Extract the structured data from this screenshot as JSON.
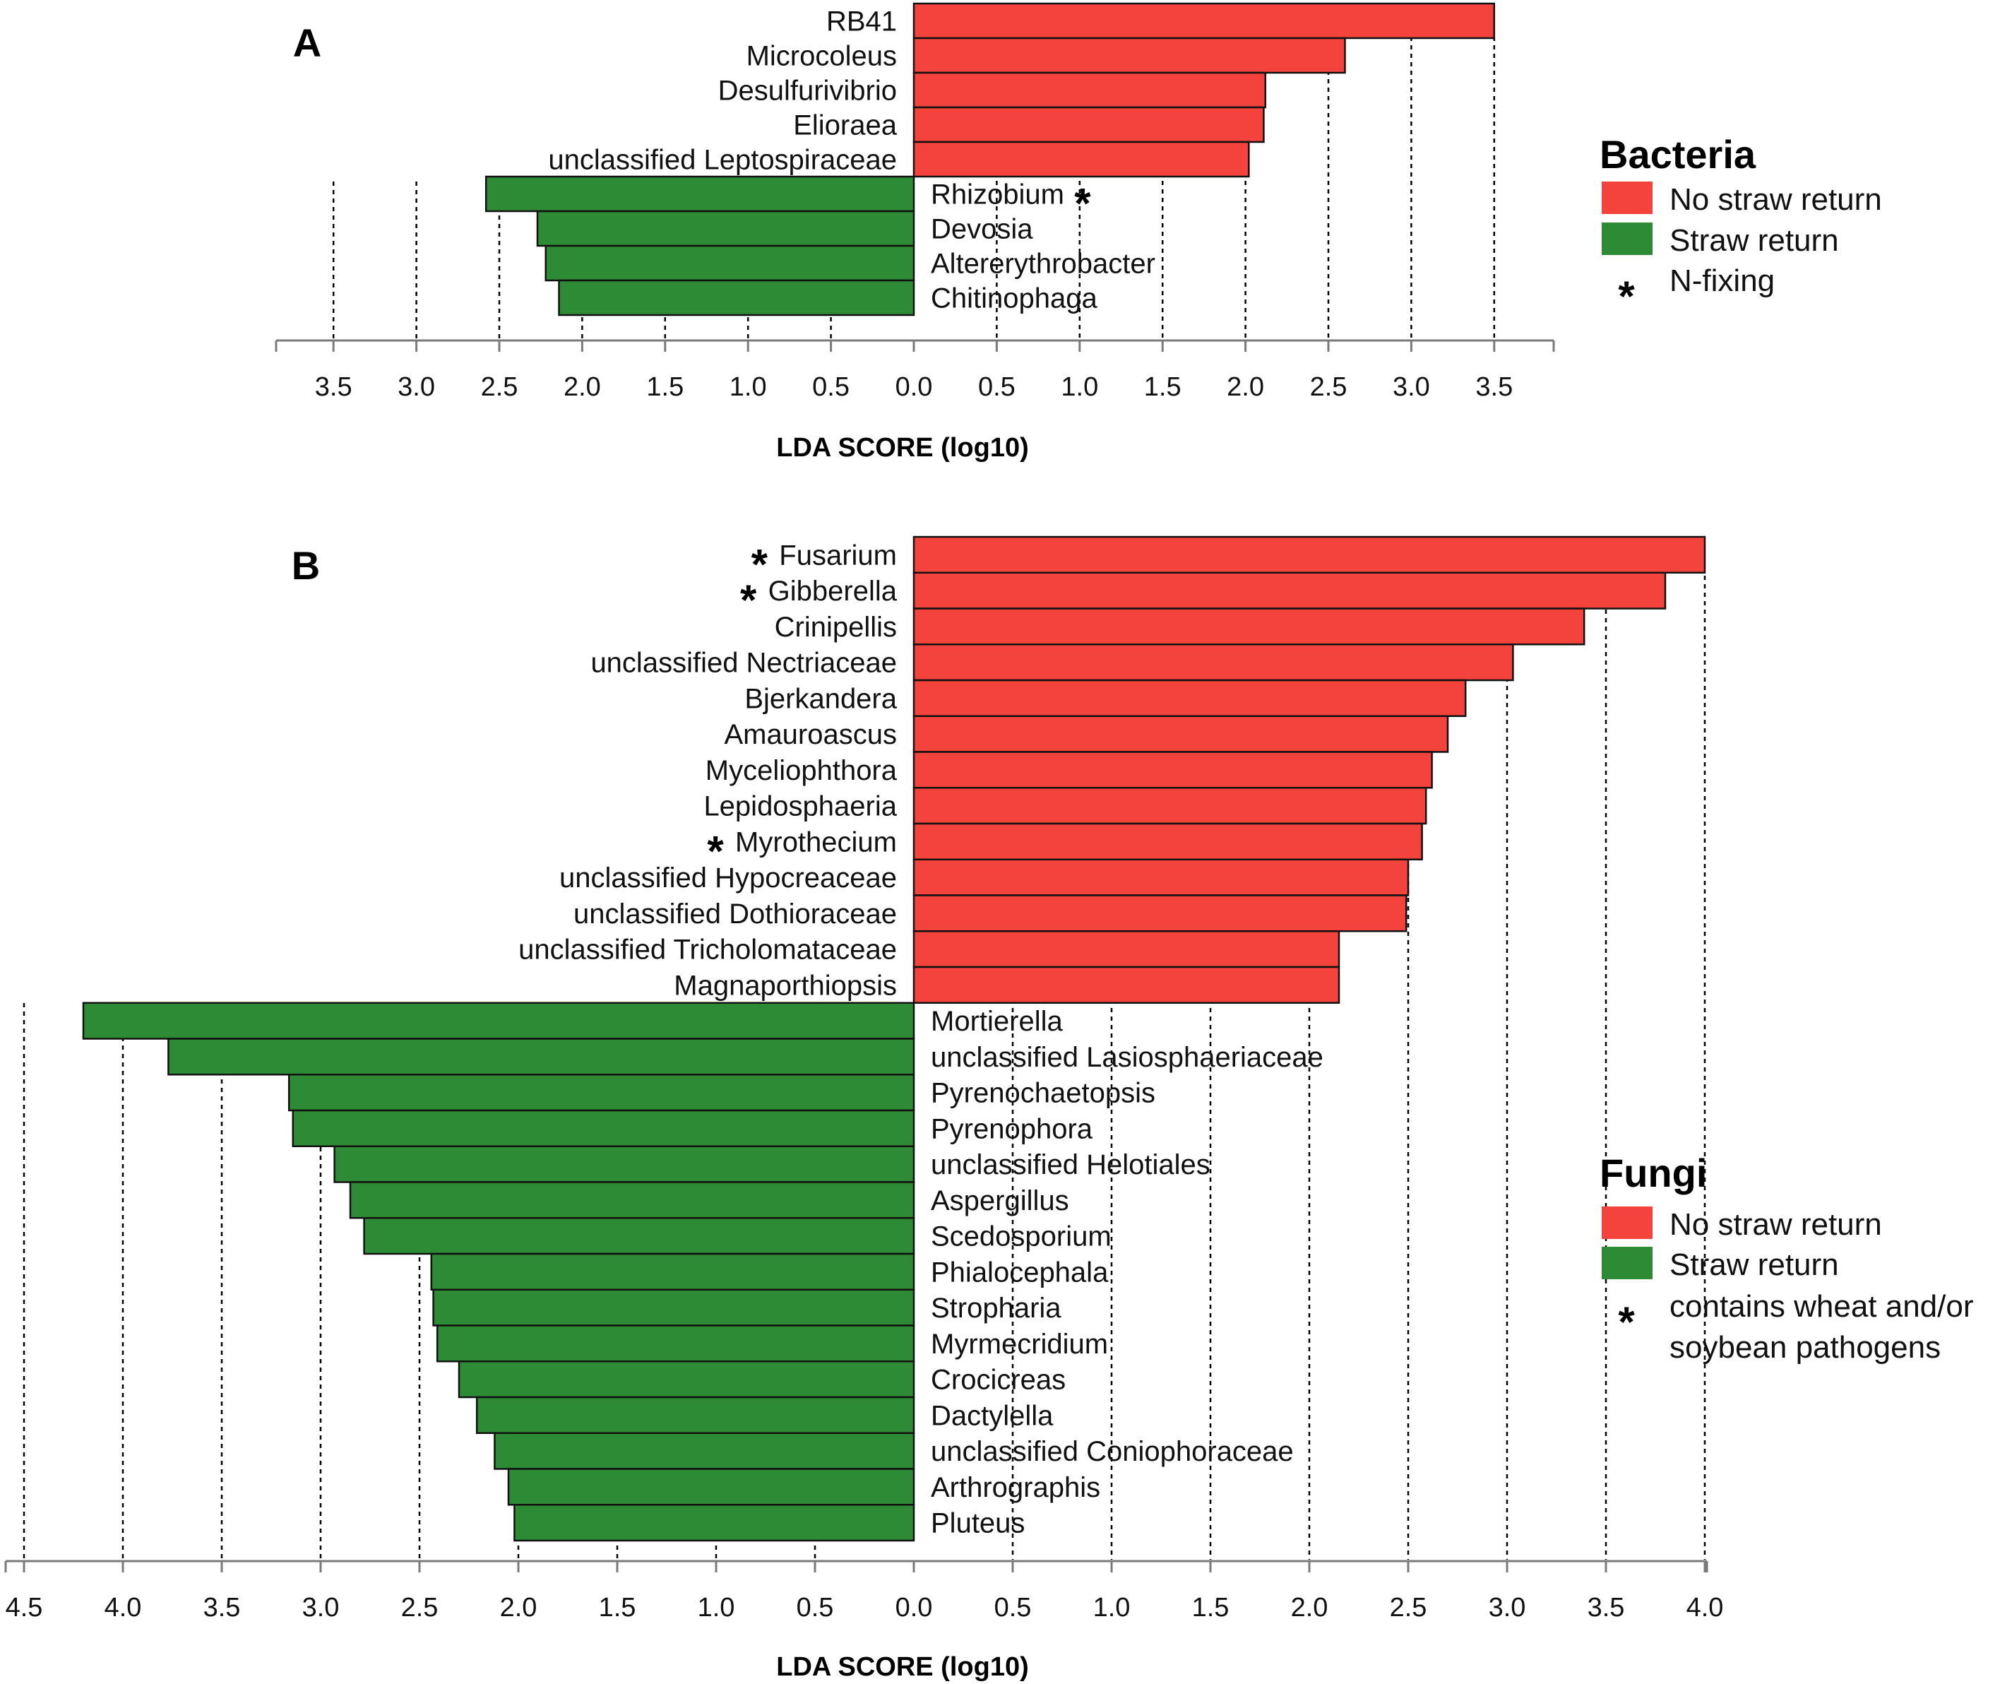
{
  "chart_data": [
    {
      "panel": "A",
      "type": "bar",
      "orientation": "horizontal",
      "xlabel": "LDA SCORE (log10)",
      "xticks_left": [
        "3.5",
        "3.0",
        "2.5",
        "2.0",
        "1.5",
        "1.0",
        "0.5"
      ],
      "xticks_right": [
        "0.0",
        "0.5",
        "1.0",
        "1.5",
        "2.0",
        "2.5",
        "3.0",
        "3.5"
      ],
      "series": [
        {
          "name": "No straw return",
          "color": "#f4433c",
          "categories": [
            "RB41",
            "Microcoleus",
            "Desulfurivibrio",
            "Elioraea",
            "unclassified Leptospiraceae"
          ],
          "values": [
            3.5,
            2.6,
            2.12,
            2.11,
            2.02
          ],
          "starred": [
            false,
            false,
            false,
            false,
            false
          ]
        },
        {
          "name": "Straw return",
          "color": "#2e8b35",
          "categories": [
            "Rhizobium",
            "Devosia",
            "Altererythrobacter",
            "Chitinophaga"
          ],
          "values": [
            2.58,
            2.27,
            2.22,
            2.14
          ],
          "starred": [
            true,
            false,
            false,
            false
          ]
        }
      ],
      "legend": {
        "title": "Bacteria",
        "items": [
          "No straw return",
          "Straw return"
        ],
        "star_label": "N-fixing",
        "star_symbol": "*"
      }
    },
    {
      "panel": "B",
      "type": "bar",
      "orientation": "horizontal",
      "xlabel": "LDA SCORE (log10)",
      "xticks_left": [
        "4.5",
        "4.0",
        "3.5",
        "3.0",
        "2.5",
        "2.0",
        "1.5",
        "1.0",
        "0.5"
      ],
      "xticks_right": [
        "0.0",
        "0.5",
        "1.0",
        "1.5",
        "2.0",
        "2.5",
        "3.0",
        "3.5",
        "4.0"
      ],
      "series": [
        {
          "name": "No straw return",
          "color": "#f4433c",
          "categories": [
            "Fusarium",
            "Gibberella",
            "Crinipellis",
            "unclassified Nectriaceae",
            "Bjerkandera",
            "Amauroascus",
            "Myceliophthora",
            "Lepidosphaeria",
            "Myrothecium",
            "unclassified Hypocreaceae",
            "unclassified Dothioraceae",
            "unclassified Tricholomataceae",
            "Magnaporthiopsis"
          ],
          "values": [
            4.0,
            3.8,
            3.39,
            3.03,
            2.79,
            2.7,
            2.62,
            2.59,
            2.57,
            2.5,
            2.49,
            2.15,
            2.15
          ],
          "starred": [
            true,
            true,
            false,
            false,
            false,
            false,
            false,
            false,
            true,
            false,
            false,
            false,
            false
          ]
        },
        {
          "name": "Straw return",
          "color": "#2e8b35",
          "categories": [
            "Mortierella",
            "unclassified Lasiosphaeriaceae",
            "Pyrenochaetopsis",
            "Pyrenophora",
            "unclassified Helotiales",
            "Aspergillus",
            "Scedosporium",
            "Phialocephala",
            "Stropharia",
            "Myrmecridium",
            "Crocicreas",
            "Dactylella",
            "unclassified Coniophoraceae",
            "Arthrographis",
            "Pluteus"
          ],
          "values": [
            4.2,
            3.77,
            3.16,
            3.14,
            2.93,
            2.85,
            2.78,
            2.44,
            2.43,
            2.41,
            2.3,
            2.21,
            2.12,
            2.05,
            2.02
          ],
          "starred": [
            false,
            false,
            false,
            false,
            false,
            false,
            false,
            false,
            false,
            false,
            false,
            false,
            false,
            false,
            false
          ]
        }
      ],
      "legend": {
        "title": "Fungi",
        "items": [
          "No straw return",
          "Straw return"
        ],
        "star_label": "contains wheat and/or",
        "star_label_2": "soybean pathogens",
        "star_symbol": "*"
      }
    }
  ]
}
